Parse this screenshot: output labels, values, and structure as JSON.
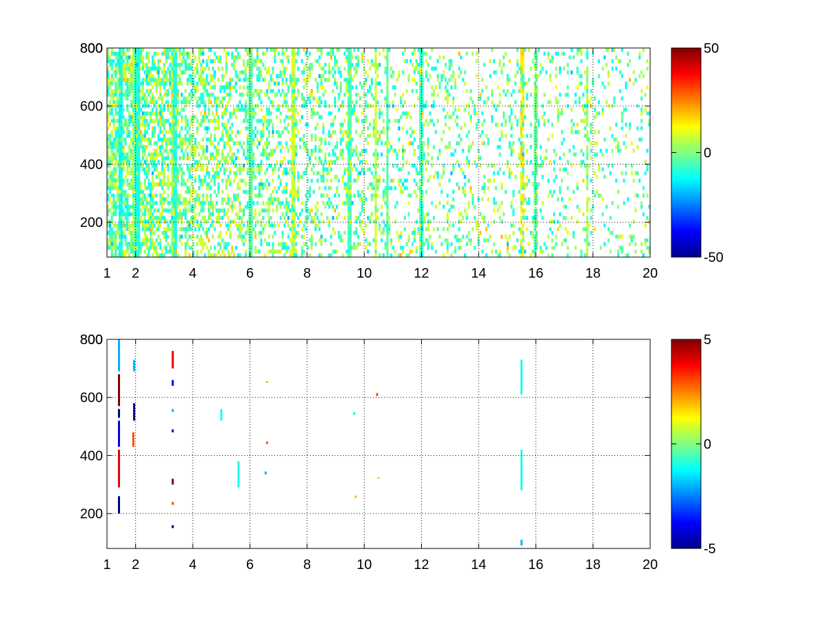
{
  "chart_data": [
    {
      "type": "heatmap",
      "title": "",
      "xlabel": "",
      "ylabel": "",
      "x_ticks": [
        "1",
        "2",
        "4",
        "6",
        "8",
        "10",
        "12",
        "14",
        "16",
        "18",
        "20"
      ],
      "x_tick_values": [
        1,
        2,
        4,
        6,
        8,
        10,
        12,
        14,
        16,
        18,
        20
      ],
      "xlim": [
        1,
        20
      ],
      "y_ticks": [
        "200",
        "400",
        "600",
        "800"
      ],
      "y_tick_values": [
        200,
        400,
        600,
        800
      ],
      "ylim": [
        80,
        800
      ],
      "grid": true,
      "grid_style": "dotted",
      "colormap": "jet",
      "colorbar": {
        "ticks": [
          "50",
          "0",
          "-50"
        ],
        "tick_values": [
          50,
          0,
          -50
        ],
        "clim": [
          -50,
          50
        ],
        "position": "right"
      },
      "dense_columns": [
        {
          "x": 1.45,
          "value": -12
        },
        {
          "x": 1.95,
          "value": 6
        },
        {
          "x": 2.0,
          "value": -8
        },
        {
          "x": 2.1,
          "value": -10
        },
        {
          "x": 3.3,
          "value": 5
        },
        {
          "x": 3.4,
          "value": -9
        },
        {
          "x": 6.0,
          "value": -6
        },
        {
          "x": 7.5,
          "value": 8
        },
        {
          "x": 9.5,
          "value": -5
        },
        {
          "x": 10.4,
          "value": 9
        },
        {
          "x": 10.8,
          "value": -4
        },
        {
          "x": 12.0,
          "value": -7
        },
        {
          "x": 15.5,
          "value": 15
        },
        {
          "x": 16.0,
          "value": -3
        },
        {
          "x": 17.8,
          "value": 4
        }
      ]
    },
    {
      "type": "heatmap",
      "title": "",
      "xlabel": "",
      "ylabel": "",
      "x_ticks": [
        "1",
        "2",
        "4",
        "6",
        "8",
        "10",
        "12",
        "14",
        "16",
        "18",
        "20"
      ],
      "x_tick_values": [
        1,
        2,
        4,
        6,
        8,
        10,
        12,
        14,
        16,
        18,
        20
      ],
      "xlim": [
        1,
        20
      ],
      "y_ticks": [
        "200",
        "400",
        "600",
        "800"
      ],
      "y_tick_values": [
        200,
        400,
        600,
        800
      ],
      "ylim": [
        80,
        800
      ],
      "grid": true,
      "grid_style": "dotted",
      "colormap": "jet",
      "colorbar": {
        "ticks": [
          "5",
          "0",
          "-5"
        ],
        "tick_values": [
          5,
          0,
          -5
        ],
        "clim": [
          -5,
          5
        ],
        "position": "right"
      },
      "cells": [
        {
          "x": 1.42,
          "y0": 200,
          "y1": 260,
          "value": -5
        },
        {
          "x": 1.42,
          "y0": 290,
          "y1": 420,
          "value": 4
        },
        {
          "x": 1.42,
          "y0": 430,
          "y1": 520,
          "value": -4
        },
        {
          "x": 1.42,
          "y0": 530,
          "y1": 560,
          "value": -5
        },
        {
          "x": 1.42,
          "y0": 570,
          "y1": 680,
          "value": 5
        },
        {
          "x": 1.42,
          "y0": 690,
          "y1": 800,
          "value": -2
        },
        {
          "x": 1.92,
          "y0": 430,
          "y1": 480,
          "value": 3
        },
        {
          "x": 1.95,
          "y0": 520,
          "y1": 580,
          "value": -5
        },
        {
          "x": 1.95,
          "y0": 690,
          "y1": 730,
          "value": -2
        },
        {
          "x": 3.3,
          "y0": 150,
          "y1": 160,
          "value": -5
        },
        {
          "x": 3.3,
          "y0": 230,
          "y1": 240,
          "value": 3
        },
        {
          "x": 3.3,
          "y0": 300,
          "y1": 320,
          "value": 5
        },
        {
          "x": 3.3,
          "y0": 480,
          "y1": 490,
          "value": -4
        },
        {
          "x": 3.3,
          "y0": 550,
          "y1": 560,
          "value": -2
        },
        {
          "x": 3.3,
          "y0": 640,
          "y1": 660,
          "value": -4
        },
        {
          "x": 3.3,
          "y0": 700,
          "y1": 760,
          "value": 4
        },
        {
          "x": 5.0,
          "y0": 520,
          "y1": 560,
          "value": -1
        },
        {
          "x": 5.6,
          "y0": 290,
          "y1": 380,
          "value": -1
        },
        {
          "x": 6.55,
          "y0": 335,
          "y1": 345,
          "value": -2
        },
        {
          "x": 6.6,
          "y0": 440,
          "y1": 448,
          "value": 3
        },
        {
          "x": 6.6,
          "y0": 650,
          "y1": 656,
          "value": 2
        },
        {
          "x": 9.65,
          "y0": 540,
          "y1": 550,
          "value": -1
        },
        {
          "x": 9.7,
          "y0": 255,
          "y1": 262,
          "value": 2
        },
        {
          "x": 10.45,
          "y0": 605,
          "y1": 615,
          "value": 3
        },
        {
          "x": 10.5,
          "y0": 320,
          "y1": 325,
          "value": 2
        },
        {
          "x": 15.5,
          "y0": 90,
          "y1": 110,
          "value": -2
        },
        {
          "x": 15.5,
          "y0": 280,
          "y1": 420,
          "value": -1
        },
        {
          "x": 15.5,
          "y0": 610,
          "y1": 730,
          "value": -1
        }
      ]
    }
  ]
}
